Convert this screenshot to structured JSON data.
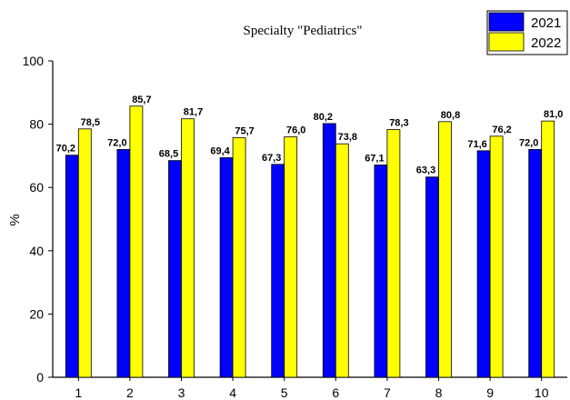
{
  "chart_data": {
    "type": "bar",
    "title": "Specialty \"Pediatrics\"",
    "xlabel": "",
    "ylabel": "%",
    "ylim": [
      0,
      100
    ],
    "yticks": [
      "0",
      "20",
      "40",
      "60",
      "80",
      "100"
    ],
    "categories": [
      "1",
      "2",
      "3",
      "4",
      "5",
      "6",
      "7",
      "8",
      "9",
      "10"
    ],
    "series": [
      {
        "name": "2021",
        "color": "#0000ff",
        "values": [
          70.2,
          72.0,
          68.5,
          69.4,
          67.3,
          80.2,
          67.1,
          63.3,
          71.6,
          72.0
        ],
        "labels": [
          "70,2",
          "72,0",
          "68,5",
          "69,4",
          "67,3",
          "80,2",
          "67,1",
          "63,3",
          "71,6",
          "72,0"
        ]
      },
      {
        "name": "2022",
        "color": "#ffff00",
        "values": [
          78.5,
          85.7,
          81.7,
          75.7,
          76.0,
          73.8,
          78.3,
          80.8,
          76.2,
          81.0
        ],
        "labels": [
          "78,5",
          "85,7",
          "81,7",
          "75,7",
          "76,0",
          "73,8",
          "78,3",
          "80,8",
          "76,2",
          "81,0"
        ]
      }
    ],
    "legend_position": "top-right",
    "grid": false
  }
}
